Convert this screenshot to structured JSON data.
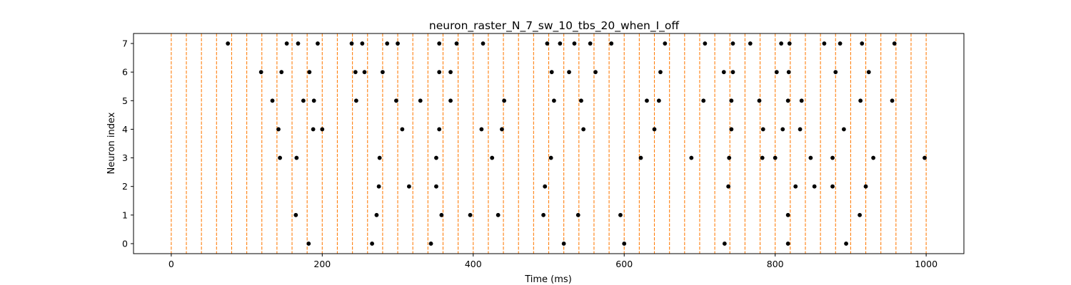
{
  "chart_data": {
    "type": "scatter",
    "title": "neuron_raster_N_7_sw_10_tbs_20_when_I_off",
    "xlabel": "Time (ms)",
    "ylabel": "Neuron index",
    "xlim": [
      -50,
      1050
    ],
    "ylim": [
      -0.35,
      7.35
    ],
    "x_ticks": [
      0,
      200,
      400,
      600,
      800,
      1000
    ],
    "y_ticks": [
      0,
      1,
      2,
      3,
      4,
      5,
      6,
      7
    ],
    "grid": false,
    "marker_color": "#000000",
    "vline_color": "#ff7f0e",
    "vline_style": "dashed",
    "vlines_x": [
      0,
      20,
      40,
      60,
      80,
      100,
      120,
      140,
      160,
      180,
      200,
      220,
      240,
      260,
      280,
      300,
      320,
      340,
      360,
      380,
      400,
      420,
      440,
      460,
      480,
      500,
      520,
      540,
      560,
      580,
      600,
      620,
      640,
      660,
      680,
      700,
      720,
      740,
      760,
      780,
      800,
      820,
      840,
      860,
      880,
      900,
      920,
      940,
      960,
      980,
      1000
    ],
    "series": [
      {
        "neuron": 0,
        "spike_times": [
          182,
          266,
          344,
          520,
          600,
          733,
          817,
          894
        ]
      },
      {
        "neuron": 1,
        "spike_times": [
          165,
          272,
          358,
          396,
          433,
          493,
          539,
          595,
          817,
          912
        ]
      },
      {
        "neuron": 2,
        "spike_times": [
          275,
          315,
          351,
          495,
          738,
          827,
          852,
          876,
          920
        ]
      },
      {
        "neuron": 3,
        "spike_times": [
          144,
          166,
          276,
          351,
          425,
          503,
          622,
          689,
          739,
          783,
          800,
          847,
          876,
          930,
          998
        ]
      },
      {
        "neuron": 4,
        "spike_times": [
          142,
          188,
          200,
          306,
          355,
          411,
          438,
          546,
          640,
          742,
          784,
          810,
          833,
          891
        ]
      },
      {
        "neuron": 5,
        "spike_times": [
          134,
          175,
          189,
          245,
          298,
          330,
          370,
          441,
          507,
          543,
          630,
          646,
          705,
          742,
          779,
          817,
          835,
          913,
          955
        ]
      },
      {
        "neuron": 6,
        "spike_times": [
          119,
          146,
          183,
          244,
          256,
          280,
          355,
          370,
          504,
          527,
          562,
          648,
          732,
          744,
          802,
          818,
          880,
          924
        ]
      },
      {
        "neuron": 7,
        "spike_times": [
          75,
          153,
          168,
          194,
          239,
          253,
          286,
          300,
          355,
          378,
          413,
          498,
          515,
          534,
          555,
          583,
          654,
          707,
          744,
          767,
          808,
          819,
          865,
          886,
          915,
          958
        ]
      }
    ]
  }
}
